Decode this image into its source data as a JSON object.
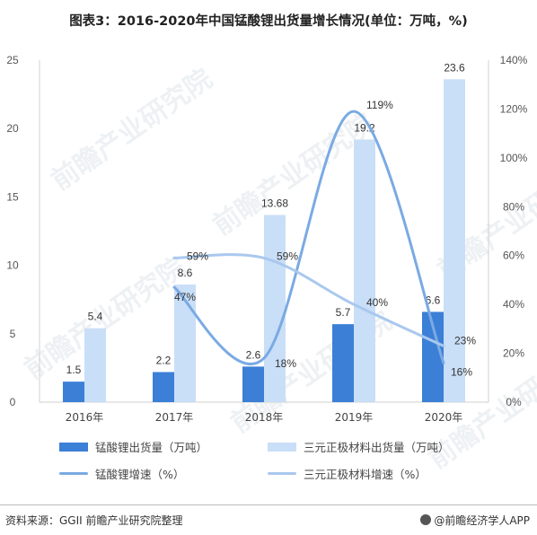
{
  "title": "图表3：2016-2020年中国锰酸锂出货量增长情况(单位：万吨，%)",
  "watermark": "前瞻产业研究院",
  "source": "资料来源：GGII 前瞻产业研究院整理",
  "brand": "@前瞻经济学人APP",
  "colors": {
    "bar1": "#3c7fd6",
    "bar2": "#c9def7",
    "line1": "#7aaae3",
    "line2": "#a9c8ee"
  },
  "legend": {
    "bar1": "锰酸锂出货量（万吨）",
    "bar2": "三元正极材料出货量（万吨）",
    "line1": "锰酸锂增速（%）",
    "line2": "三元正极材料增速（%）"
  },
  "chart_data": {
    "type": "bar",
    "categories": [
      "2016年",
      "2017年",
      "2018年",
      "2019年",
      "2020年"
    ],
    "series": [
      {
        "name": "锰酸锂出货量（万吨）",
        "type": "bar",
        "axis": "left",
        "values": [
          1.5,
          2.2,
          2.6,
          5.7,
          6.6
        ],
        "labels": [
          "1.5",
          "2.2",
          "2.6",
          "5.7",
          "6.6"
        ]
      },
      {
        "name": "三元正极材料出货量（万吨）",
        "type": "bar",
        "axis": "left",
        "values": [
          5.4,
          8.6,
          13.68,
          19.2,
          23.6
        ],
        "labels": [
          "5.4",
          "8.6",
          "13.68",
          "19.2",
          "23.6"
        ]
      },
      {
        "name": "锰酸锂增速（%）",
        "type": "line",
        "axis": "right",
        "values": [
          null,
          47,
          18,
          119,
          16
        ],
        "labels": [
          "",
          "47%",
          "18%",
          "119%",
          "16%"
        ]
      },
      {
        "name": "三元正极材料增速（%）",
        "type": "line",
        "axis": "right",
        "values": [
          null,
          59,
          59,
          40,
          23
        ],
        "labels": [
          "",
          "59%",
          "59%",
          "40%",
          "23%"
        ]
      }
    ],
    "ylim": [
      0,
      25
    ],
    "y_ticks": [
      "0",
      "5",
      "10",
      "15",
      "20",
      "25"
    ],
    "y2lim": [
      0,
      140
    ],
    "y2_ticks": [
      "0%",
      "20%",
      "40%",
      "60%",
      "80%",
      "100%",
      "120%",
      "140%"
    ],
    "grid": false,
    "legend_position": "bottom"
  }
}
